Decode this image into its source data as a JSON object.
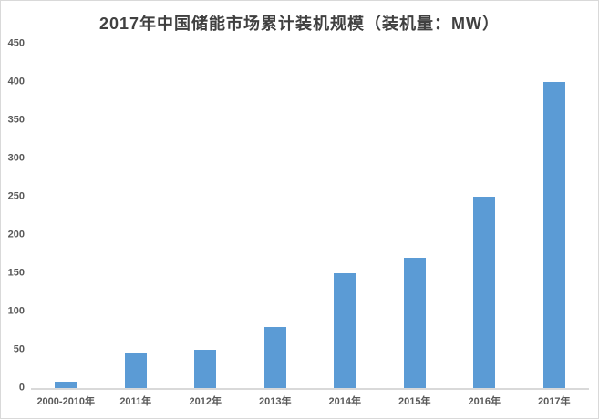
{
  "window": {
    "background_color": "#ffffff",
    "border_color": "#d9d9d9"
  },
  "chart_data": {
    "type": "bar",
    "title": "2017年中国储能市场累计装机规模（装机量：MW）",
    "categories": [
      "2000-2010年",
      "2011年",
      "2012年",
      "2013年",
      "2014年",
      "2015年",
      "2016年",
      "2017年"
    ],
    "values": [
      8,
      45,
      50,
      80,
      150,
      170,
      250,
      400
    ],
    "xlabel": "",
    "ylabel": "",
    "ylim": [
      0,
      450
    ],
    "yticks": [
      0,
      50,
      100,
      150,
      200,
      250,
      300,
      350,
      400,
      450
    ],
    "grid": false,
    "legend_position": "none",
    "bar_color": "#5b9bd5",
    "axis_line_color": "#d9d9d9",
    "tick_label_color": "#595959",
    "title_color": "#404040"
  }
}
